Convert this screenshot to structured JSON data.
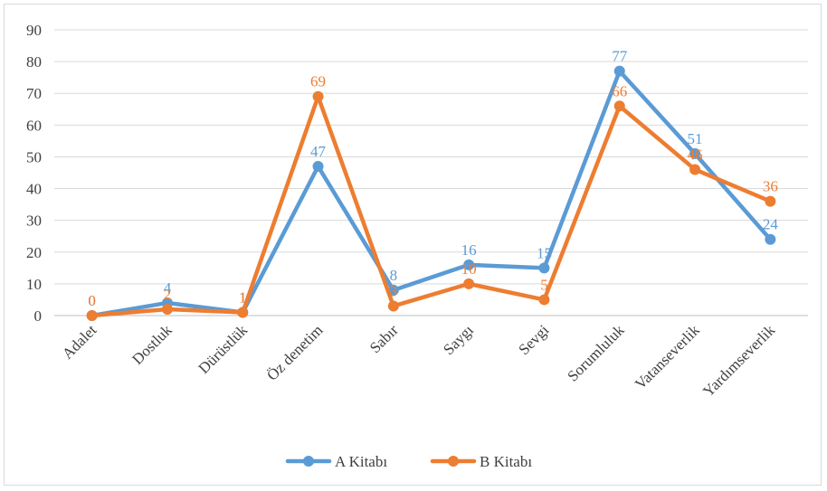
{
  "chart_data": {
    "type": "line",
    "categories": [
      "Adalet",
      "Dostluk",
      "Dürüstlük",
      "Öz denetim",
      "Sabır",
      "Saygı",
      "Sevgi",
      "Sorumluluk",
      "Vatanseverlik",
      "Yardımseverlik"
    ],
    "series": [
      {
        "name": "A Kitabı",
        "color": "#5b9bd5",
        "values": [
          0,
          4,
          1,
          47,
          8,
          16,
          15,
          77,
          51,
          24
        ]
      },
      {
        "name": "B Kitabı",
        "color": "#ed7d31",
        "values": [
          0,
          2,
          1,
          69,
          3,
          10,
          5,
          66,
          46,
          36
        ]
      }
    ],
    "ylim": [
      0,
      90
    ],
    "yticks": [
      "0",
      "10",
      "20",
      "30",
      "40",
      "50",
      "60",
      "70",
      "80",
      "90"
    ],
    "grid": true,
    "legend_position": "bottom",
    "title": "",
    "xlabel": "",
    "ylabel": ""
  }
}
